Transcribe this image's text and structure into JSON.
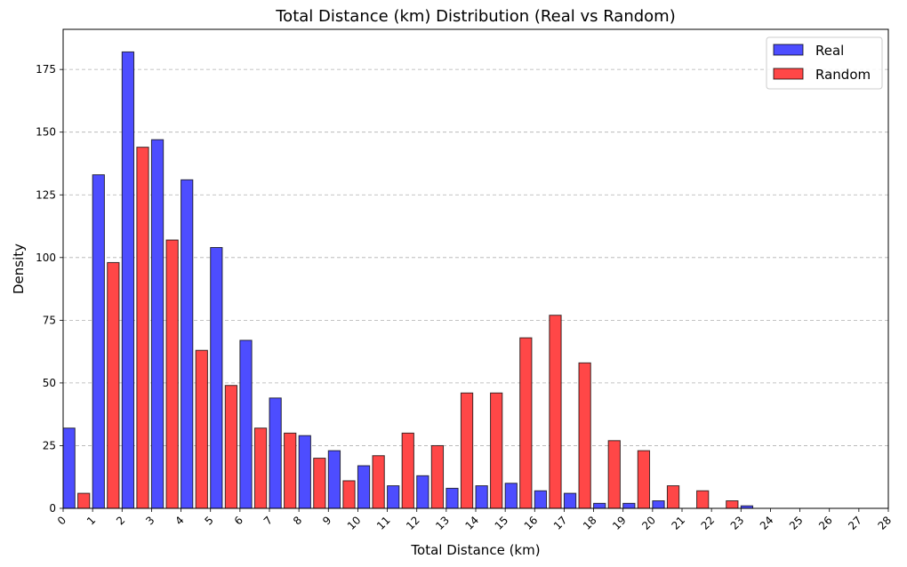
{
  "chart_data": {
    "type": "bar",
    "title": "Total Distance (km) Distribution (Real vs Random)",
    "xlabel": "Total Distance (km)",
    "ylabel": "Density",
    "xlim": [
      0,
      28
    ],
    "ylim": [
      0,
      191
    ],
    "x_ticks": [
      0,
      1,
      2,
      3,
      4,
      5,
      6,
      7,
      8,
      9,
      10,
      11,
      12,
      13,
      14,
      15,
      16,
      17,
      18,
      19,
      20,
      21,
      22,
      23,
      24,
      25,
      26,
      27,
      28
    ],
    "y_ticks": [
      0,
      25,
      50,
      75,
      100,
      125,
      150,
      175
    ],
    "x_tick_rotation": 45,
    "grid": "y-dashed",
    "legend_placement": "top-right",
    "bin_starts": [
      0,
      1,
      2,
      3,
      4,
      5,
      6,
      7,
      8,
      9,
      10,
      11,
      12,
      13,
      14,
      15,
      16,
      17,
      18,
      19,
      20,
      21,
      22,
      23,
      24,
      25,
      26,
      27
    ],
    "series": [
      {
        "name": "Real",
        "color": "#4d4dff",
        "values": [
          32,
          133,
          182,
          147,
          131,
          104,
          67,
          44,
          29,
          23,
          17,
          9,
          13,
          8,
          9,
          10,
          7,
          6,
          2,
          2,
          3,
          0,
          0,
          1,
          0,
          0,
          0,
          0
        ]
      },
      {
        "name": "Random",
        "color": "#ff4747",
        "values": [
          6,
          98,
          144,
          107,
          63,
          49,
          32,
          30,
          20,
          11,
          21,
          30,
          25,
          46,
          46,
          68,
          77,
          58,
          27,
          23,
          9,
          7,
          3,
          0,
          0,
          0,
          0,
          0
        ]
      }
    ]
  }
}
